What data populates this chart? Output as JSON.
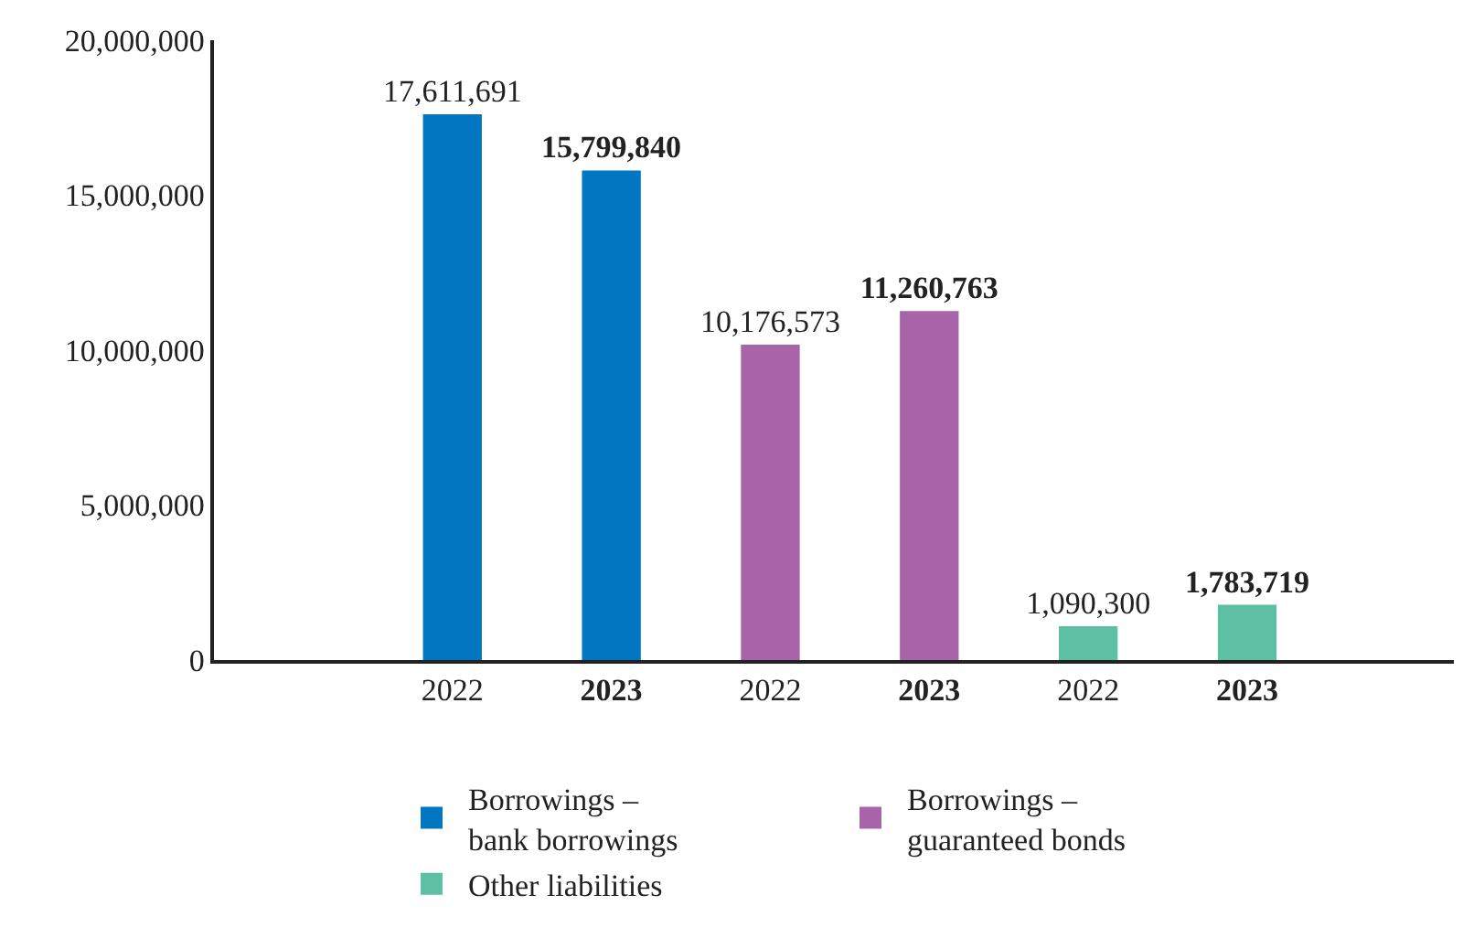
{
  "chart_data": {
    "type": "bar",
    "categories": [
      "2022",
      "2023",
      "2022",
      "2023",
      "2022",
      "2023"
    ],
    "series": [
      {
        "name": "Borrowings –\nbank borrowings",
        "color": "#0077c0",
        "values": [
          17611691,
          15799840,
          null,
          null,
          null,
          null
        ],
        "value_labels": [
          "17,611,691",
          "15,799,840",
          null,
          null,
          null,
          null
        ]
      },
      {
        "name": "Borrowings –\nguaranteed bonds",
        "color": "#a764a8",
        "values": [
          null,
          null,
          10176573,
          11260763,
          null,
          null
        ],
        "value_labels": [
          null,
          null,
          "10,176,573",
          "11,260,763",
          null,
          null
        ]
      },
      {
        "name": "Other liabilities",
        "color": "#5dc0a5",
        "values": [
          null,
          null,
          null,
          null,
          1090300,
          1783719
        ],
        "value_labels": [
          null,
          null,
          null,
          null,
          "1,090,300",
          "1,783,719"
        ]
      }
    ],
    "ylim": [
      0,
      20000000
    ],
    "yticks": [
      {
        "value": 0,
        "label": "0"
      },
      {
        "value": 5000000,
        "label": "5,000,000"
      },
      {
        "value": 10000000,
        "label": "10,000,000"
      },
      {
        "value": 15000000,
        "label": "15,000,000"
      },
      {
        "value": 20000000,
        "label": "20,000,000"
      }
    ],
    "legend": "bottom"
  }
}
